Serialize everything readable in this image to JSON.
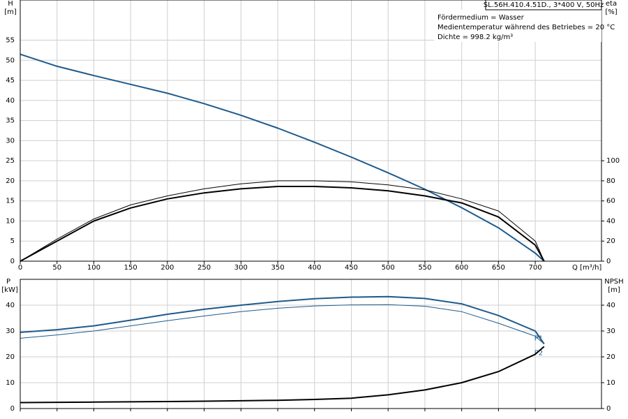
{
  "chart_data": [
    {
      "type": "line",
      "title": "SL.56H.410.4.51D., 3*400 V, 50Hz",
      "annotations": [
        "Fördermedium = Wasser",
        "Medientemperatur während des Betriebes = 20 °C",
        "Dichte = 998.2 kg/m³"
      ],
      "ylabel": "H",
      "yunit": "[m]",
      "y2label": "eta",
      "y2unit": "[%]",
      "xlabel": "Q [m³/h]",
      "x": [
        0,
        50,
        100,
        150,
        200,
        250,
        300,
        350,
        400,
        450,
        500,
        550,
        600,
        650,
        700,
        712
      ],
      "xlim": [
        0,
        790
      ],
      "xticks": [
        0,
        50,
        100,
        150,
        200,
        250,
        300,
        350,
        400,
        450,
        500,
        550,
        600,
        650,
        700
      ],
      "ylim": [
        0,
        65
      ],
      "yticks": [
        0,
        5,
        10,
        15,
        20,
        25,
        30,
        35,
        40,
        45,
        50,
        55
      ],
      "y2lim": [
        0,
        260
      ],
      "y2ticks": [
        0,
        20,
        40,
        60,
        80,
        100
      ],
      "grid": true,
      "series": [
        {
          "color": "#1d5a8c",
          "width": 2,
          "values": [
            51.5,
            48.5,
            46.2,
            44.0,
            41.8,
            39.2,
            36.3,
            33.1,
            29.6,
            25.9,
            22.0,
            17.9,
            13.3,
            8.3,
            2.0,
            0
          ]
        },
        {
          "color": "#000000",
          "width": 2,
          "axis": "y2",
          "values": [
            0,
            20,
            40,
            53,
            62,
            68,
            72,
            74.4,
            74.4,
            73,
            70,
            65,
            58,
            44,
            16,
            0
          ]
        },
        {
          "color": "#000000",
          "width": 1,
          "axis": "y2",
          "values": [
            0,
            22,
            42,
            56,
            65,
            72,
            77,
            80,
            80,
            79,
            76,
            71,
            62,
            50,
            20,
            0
          ]
        }
      ]
    },
    {
      "type": "line",
      "ylabel": "P",
      "yunit": "[kW]",
      "y2label": "NPSH",
      "y2unit": "[m]",
      "x": [
        0,
        50,
        100,
        150,
        200,
        250,
        300,
        350,
        400,
        450,
        500,
        550,
        600,
        650,
        700,
        712
      ],
      "xlim": [
        0,
        790
      ],
      "ylim": [
        0,
        50
      ],
      "yticks": [
        0,
        10,
        20,
        30,
        40
      ],
      "y2lim": [
        0,
        50
      ],
      "y2ticks": [
        0,
        10,
        20,
        30,
        40
      ],
      "grid": true,
      "series": [
        {
          "name": "P1",
          "color": "#1d5a8c",
          "width": 2,
          "values": [
            29.5,
            30.5,
            32,
            34.2,
            36.5,
            38.4,
            40,
            41.4,
            42.5,
            43.1,
            43.3,
            42.6,
            40.5,
            36,
            30,
            25
          ]
        },
        {
          "name": "P2",
          "color": "#1d5a8c",
          "width": 1,
          "values": [
            27.2,
            28.5,
            30,
            32,
            34,
            35.8,
            37.5,
            38.8,
            39.7,
            40.1,
            40.2,
            39.6,
            37.5,
            33,
            28,
            25
          ]
        },
        {
          "color": "#000000",
          "width": 2,
          "axis": "y2",
          "values": [
            2.3,
            2.4,
            2.5,
            2.6,
            2.7,
            2.85,
            3,
            3.2,
            3.5,
            4,
            5.3,
            7.2,
            10,
            14.3,
            21,
            24
          ]
        }
      ]
    }
  ]
}
